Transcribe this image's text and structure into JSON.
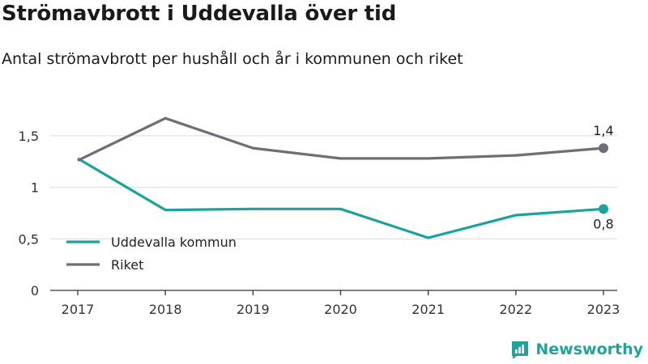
{
  "title": "Strömavbrott i Uddevalla över tid",
  "subtitle": "Antal strömavbrott per hushåll och år i kommunen och riket",
  "brand": {
    "name": "Newsworthy",
    "icon": "newsworthy-logo-icon"
  },
  "colors": {
    "uddevalla": "#1aa39c",
    "riket": "#6e6e76",
    "grid": "#dcdcdc",
    "axis": "#333333"
  },
  "chart_data": {
    "type": "line",
    "x": [
      "2017",
      "2018",
      "2019",
      "2020",
      "2021",
      "2022",
      "2023"
    ],
    "ylim": [
      0,
      1.75
    ],
    "yticks": [
      0,
      0.5,
      1,
      1.5
    ],
    "ytick_labels": [
      "0",
      "0,5",
      "1",
      "1,5"
    ],
    "series": [
      {
        "name": "Uddevalla kommun",
        "values": [
          1.28,
          0.78,
          0.79,
          0.79,
          0.51,
          0.73,
          0.79
        ],
        "end_label": "0,8"
      },
      {
        "name": "Riket",
        "values": [
          1.26,
          1.67,
          1.38,
          1.28,
          1.28,
          1.31,
          1.38
        ],
        "end_label": "1,4"
      }
    ],
    "legend": "bottom-left",
    "grid": true
  }
}
